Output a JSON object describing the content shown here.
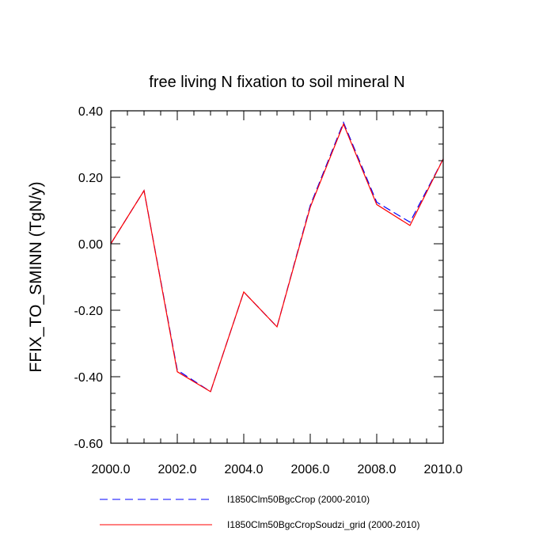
{
  "chart_data": {
    "type": "line",
    "title": "free living N fixation to soil mineral N",
    "ylabel": "FFIX_TO_SMINN  (TgN/y)",
    "xlabel": "",
    "xlim": [
      2000,
      2010
    ],
    "ylim": [
      -0.6,
      0.4
    ],
    "xticks": [
      "2000.0",
      "2002.0",
      "2004.0",
      "2006.0",
      "2008.0",
      "2010.0"
    ],
    "xtick_values": [
      2000,
      2002,
      2004,
      2006,
      2008,
      2010
    ],
    "yticks": [
      "0.40",
      "0.20",
      "0.00",
      "-0.20",
      "-0.40",
      "-0.60"
    ],
    "ytick_values": [
      0.4,
      0.2,
      0.0,
      -0.2,
      -0.4,
      -0.6
    ],
    "grid": false,
    "legend_position": "bottom",
    "x": [
      2000,
      2001,
      2002,
      2003,
      2004,
      2005,
      2006,
      2007,
      2008,
      2009,
      2010
    ],
    "series": [
      {
        "name": "I1850Clm50BgcCrop (2000-2010)",
        "color": "#0000ff",
        "style": "dashed",
        "values": [
          0.0,
          0.16,
          -0.38,
          -0.445,
          -0.145,
          -0.25,
          0.115,
          0.365,
          0.125,
          0.065,
          0.255
        ]
      },
      {
        "name": "I1850Clm50BgcCropSoudzi_grid (2000-2010)",
        "color": "#ff0000",
        "style": "solid",
        "values": [
          0.0,
          0.16,
          -0.385,
          -0.445,
          -0.145,
          -0.25,
          0.11,
          0.36,
          0.118,
          0.055,
          0.255
        ]
      }
    ]
  }
}
